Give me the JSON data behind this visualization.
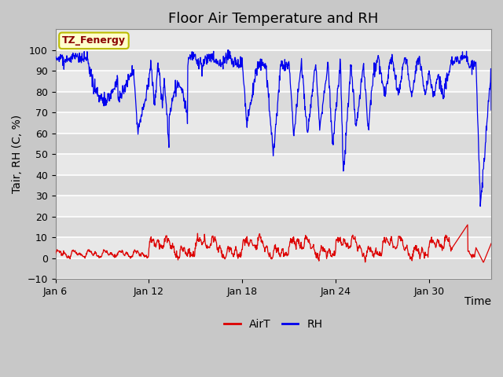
{
  "title": "Floor Air Temperature and RH",
  "xlabel": "Time",
  "ylabel": "Tair, RH (C, %)",
  "ylim": [
    -10,
    110
  ],
  "yticks": [
    -10,
    0,
    10,
    20,
    30,
    40,
    50,
    60,
    70,
    80,
    90,
    100
  ],
  "xtick_labels": [
    "Jan 6",
    "Jan 12",
    "Jan 18",
    "Jan 24",
    "Jan 30"
  ],
  "xtick_positions": [
    6,
    12,
    18,
    24,
    30
  ],
  "legend_labels": [
    "AirT",
    "RH"
  ],
  "airt_color": "#dd0000",
  "rh_color": "#0000ee",
  "plot_bg_color": "#e8e8e8",
  "fig_bg_color": "#c8c8c8",
  "annotation_text": "TZ_Fenergy",
  "annotation_bg": "#ffffcc",
  "annotation_border": "#bbbb00",
  "grid_color": "#ffffff",
  "title_fontsize": 13,
  "axis_fontsize": 10,
  "tick_fontsize": 9
}
